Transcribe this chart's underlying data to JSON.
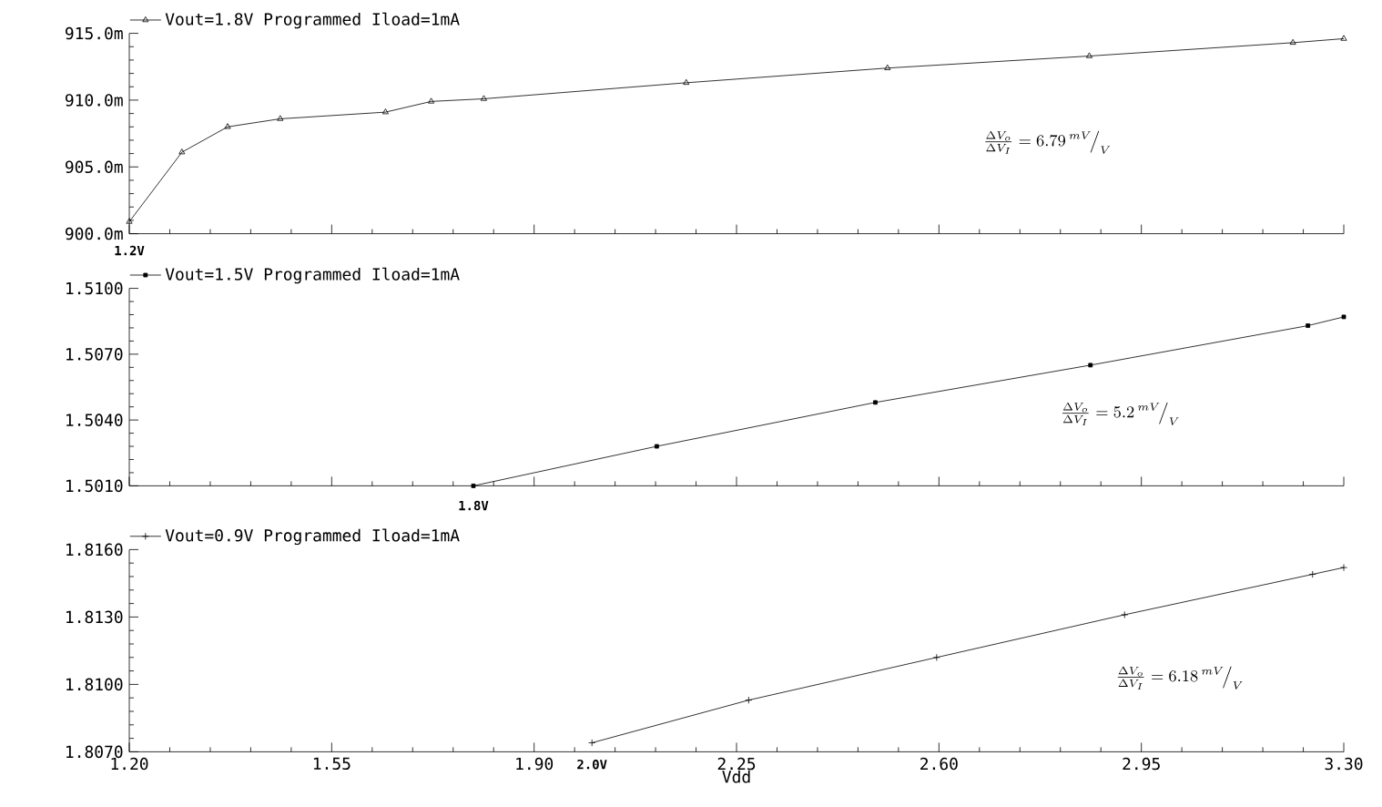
{
  "chart_data": [
    {
      "type": "line",
      "xlim": [
        1.2,
        3.3
      ],
      "ylim": [
        900,
        915
      ],
      "xticks": [
        1.2,
        1.55,
        1.9,
        2.25,
        2.6,
        2.95,
        3.3
      ],
      "yticks": [
        {
          "value": 900,
          "label": "900.0m"
        },
        {
          "value": 905,
          "label": "905.0m"
        },
        {
          "value": 910,
          "label": "910.0m"
        },
        {
          "value": 915,
          "label": "915.0m"
        }
      ],
      "tick_labels": "y",
      "legend": "top left",
      "marker": "triangle",
      "series": [
        {
          "name": "Vout=1.8V Programmed Iload=1mA",
          "color": "#000000",
          "x": [
            1.2,
            1.291,
            1.37,
            1.461,
            1.643,
            1.722,
            1.813,
            2.163,
            2.511,
            2.86,
            3.212,
            3.3
          ],
          "values": [
            900.9,
            906.1,
            908.0,
            908.6,
            909.1,
            909.9,
            910.1,
            911.3,
            912.4,
            913.3,
            914.3,
            914.6
          ]
        }
      ],
      "annotations": [
        {
          "text": "1.2V",
          "x": 1.2,
          "y": 900.9
        },
        "\\frac{\\Delta V_o}{\\Delta V_I}=6.79\\,^{mV}\\!\\big/_{V}"
      ]
    },
    {
      "type": "line",
      "xlim": [
        1.2,
        3.3
      ],
      "ylim": [
        1.501,
        1.51
      ],
      "xticks": [
        1.2,
        1.55,
        1.9,
        2.25,
        2.6,
        2.95,
        3.3
      ],
      "yticks": [
        {
          "value": 1.501,
          "label": "1.5010"
        },
        {
          "value": 1.504,
          "label": "1.5040"
        },
        {
          "value": 1.507,
          "label": "1.5070"
        },
        {
          "value": 1.51,
          "label": "1.5100"
        }
      ],
      "tick_labels": "y",
      "legend": "top left",
      "marker": "square",
      "series": [
        {
          "name": "Vout=1.5V Programmed Iload=1mA",
          "color": "#000000",
          "x": [
            1.795,
            2.112,
            2.49,
            2.862,
            3.238,
            3.3
          ],
          "values": [
            1.501,
            1.5028,
            1.5048,
            1.5065,
            1.5083,
            1.5087
          ]
        }
      ],
      "annotations": [
        {
          "text": "1.8V",
          "x": 1.795,
          "y": 1.501
        },
        "\\frac{\\Delta V_o}{\\Delta V_I}=5.2\\,^{mV}\\!\\big/_{V}"
      ]
    },
    {
      "type": "line",
      "xlim": [
        1.2,
        3.3
      ],
      "ylim": [
        1.807,
        1.816
      ],
      "xlabel": "Vdd",
      "xticks": [
        {
          "value": 1.2,
          "label": "1.20"
        },
        {
          "value": 1.55,
          "label": "1.55"
        },
        {
          "value": 1.9,
          "label": "1.90"
        },
        {
          "value": 2.25,
          "label": "2.25"
        },
        {
          "value": 2.6,
          "label": "2.60"
        },
        {
          "value": 2.95,
          "label": "2.95"
        },
        {
          "value": 3.3,
          "label": "3.30"
        }
      ],
      "yticks": [
        {
          "value": 1.807,
          "label": "1.8070"
        },
        {
          "value": 1.81,
          "label": "1.8100"
        },
        {
          "value": 1.813,
          "label": "1.8130"
        },
        {
          "value": 1.816,
          "label": "1.8160"
        }
      ],
      "legend": "top left",
      "marker": "cross",
      "series": [
        {
          "name": "Vout=0.9V Programmed Iload=1mA",
          "color": "#000000",
          "x": [
            2.0,
            2.271,
            2.596,
            2.921,
            3.246,
            3.3
          ],
          "values": [
            1.8074,
            1.8093,
            1.8112,
            1.8131,
            1.8149,
            1.8152
          ]
        }
      ],
      "annotations": [
        {
          "text": "2.0V",
          "x": 2.0,
          "y": 1.8074
        },
        "\\frac{\\Delta V_o}{\\Delta V_I}=6.18\\,^{mV}\\!\\big/_{V}"
      ]
    }
  ]
}
